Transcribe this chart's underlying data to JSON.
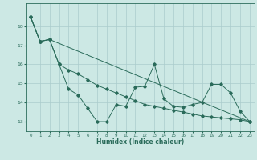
{
  "xlabel": "Humidex (Indice chaleur)",
  "background_color": "#cce8e4",
  "grid_color": "#aacccc",
  "line_color": "#2a6b5a",
  "xlim": [
    -0.5,
    23.5
  ],
  "ylim": [
    12.5,
    19.2
  ],
  "yticks": [
    13,
    14,
    15,
    16,
    17,
    18
  ],
  "xticks": [
    0,
    1,
    2,
    3,
    4,
    5,
    6,
    7,
    8,
    9,
    10,
    11,
    12,
    13,
    14,
    15,
    16,
    17,
    18,
    19,
    20,
    21,
    22,
    23
  ],
  "line1_x": [
    0,
    1,
    2,
    23
  ],
  "line1_y": [
    18.5,
    17.2,
    17.3,
    13.0
  ],
  "line2_x": [
    0,
    1,
    2,
    3,
    4,
    5,
    6,
    7,
    8,
    9,
    10,
    11,
    12,
    13,
    14,
    15,
    16,
    17,
    18,
    19,
    20,
    21,
    22,
    23
  ],
  "line2_y": [
    18.5,
    17.2,
    17.3,
    16.0,
    14.7,
    14.4,
    13.7,
    13.0,
    13.0,
    13.9,
    13.8,
    14.8,
    14.85,
    16.0,
    14.2,
    13.8,
    13.75,
    13.9,
    14.0,
    14.95,
    14.95,
    14.5,
    13.55,
    13.0
  ],
  "line3_x": [
    0,
    1,
    2,
    3,
    4,
    5,
    6,
    7,
    8,
    9,
    10,
    11,
    12,
    13,
    14,
    15,
    16,
    17,
    18,
    19,
    20,
    21,
    22,
    23
  ],
  "line3_y": [
    18.5,
    17.2,
    17.3,
    16.0,
    15.7,
    15.5,
    15.2,
    14.9,
    14.7,
    14.5,
    14.3,
    14.1,
    13.9,
    13.8,
    13.7,
    13.6,
    13.5,
    13.4,
    13.3,
    13.25,
    13.2,
    13.15,
    13.1,
    13.0
  ]
}
